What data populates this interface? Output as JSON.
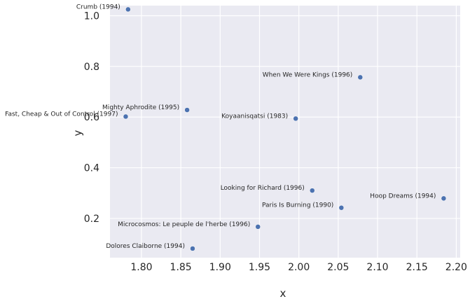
{
  "chart_data": {
    "type": "scatter",
    "title": "",
    "xlabel": "x",
    "ylabel": "y",
    "xlim": [
      1.76,
      2.205
    ],
    "ylim": [
      0.045,
      1.04
    ],
    "xticks": [
      1.8,
      1.85,
      1.9,
      1.95,
      2.0,
      2.05,
      2.1,
      2.15,
      2.2
    ],
    "xtick_labels": [
      "1.80",
      "1.85",
      "1.90",
      "1.95",
      "2.00",
      "2.05",
      "2.10",
      "2.15",
      "2.20"
    ],
    "yticks": [
      0.2,
      0.4,
      0.6,
      0.8,
      1.0
    ],
    "ytick_labels": [
      "0.2",
      "0.4",
      "0.6",
      "0.8",
      "1.0"
    ],
    "grid": true,
    "background": "#eaeaf2",
    "marker_color": "#4c72b0",
    "points": [
      {
        "label": "Crumb (1994)",
        "x": 1.783,
        "y": 1.025
      },
      {
        "label": "When We Were Kings (1996)",
        "x": 2.078,
        "y": 0.757
      },
      {
        "label": "Mighty Aphrodite (1995)",
        "x": 1.858,
        "y": 0.628
      },
      {
        "label": "Fast, Cheap & Out of Control (1997)",
        "x": 1.78,
        "y": 0.602
      },
      {
        "label": "Koyaanisqatsi (1983)",
        "x": 1.996,
        "y": 0.594
      },
      {
        "label": "Looking for Richard (1996)",
        "x": 2.017,
        "y": 0.31
      },
      {
        "label": "Hoop Dreams (1994)",
        "x": 2.184,
        "y": 0.279
      },
      {
        "label": "Paris Is Burning (1990)",
        "x": 2.054,
        "y": 0.242
      },
      {
        "label": "Microcosmos: Le peuple de l'herbe (1996)",
        "x": 1.948,
        "y": 0.167
      },
      {
        "label": "Dolores Claiborne (1994)",
        "x": 1.865,
        "y": 0.081
      }
    ]
  }
}
